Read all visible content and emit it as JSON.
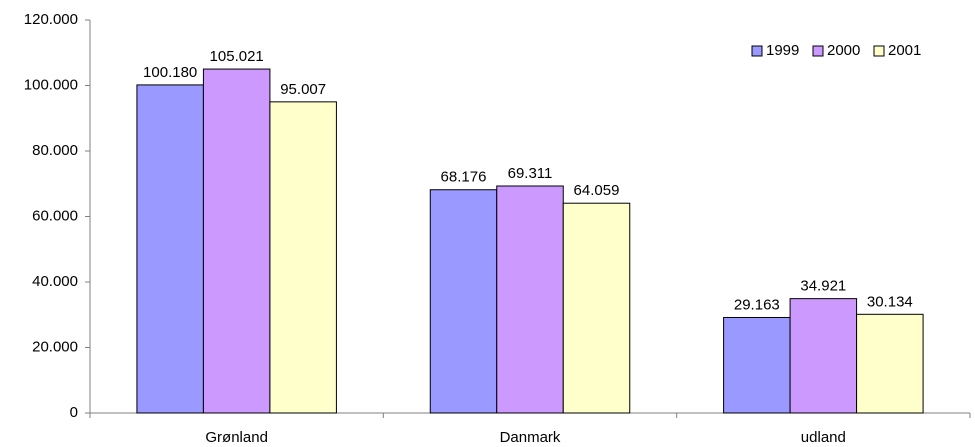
{
  "chart_data": {
    "type": "bar",
    "categories": [
      "Grønland",
      "Danmark",
      "udland"
    ],
    "series": [
      {
        "name": "1999",
        "color": "#9999ff",
        "values": [
          100180,
          68176,
          29163
        ],
        "value_labels": [
          "100.180",
          "68.176",
          "29.163"
        ]
      },
      {
        "name": "2000",
        "color": "#cc99ff",
        "values": [
          105021,
          69311,
          34921
        ],
        "value_labels": [
          "105.021",
          "69.311",
          "34.921"
        ]
      },
      {
        "name": "2001",
        "color": "#ffffcc",
        "values": [
          95007,
          64059,
          30134
        ],
        "value_labels": [
          "95.007",
          "64.059",
          "30.134"
        ]
      }
    ],
    "ylim": [
      0,
      120000
    ],
    "yticks": [
      0,
      {
        "value": 20000,
        "label": "20.000"
      },
      {
        "value": 40000,
        "label": "40.000"
      },
      {
        "value": 60000,
        "label": "60.000"
      },
      {
        "value": 80000,
        "label": "80.000"
      },
      {
        "value": 100000,
        "label": "100.000"
      },
      {
        "value": 120000,
        "label": "120.000"
      }
    ],
    "legend": "top-right"
  }
}
